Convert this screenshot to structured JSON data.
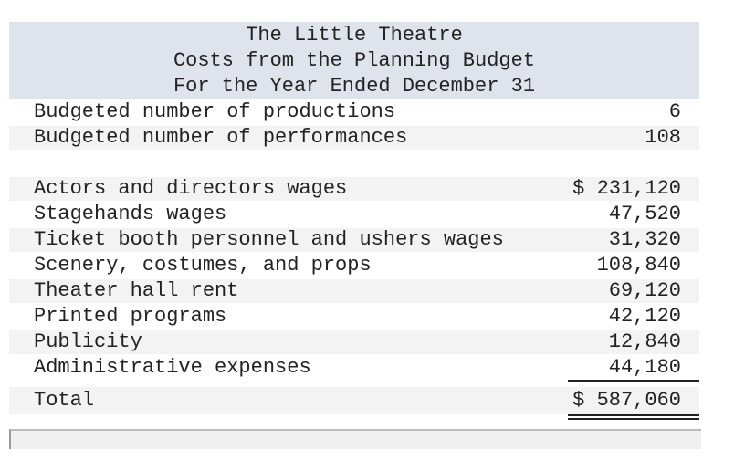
{
  "header": {
    "lines": [
      "The Little Theatre",
      "Costs from the Planning Budget",
      "For the Year Ended December 31"
    ]
  },
  "activity": {
    "rows": [
      {
        "label": "Budgeted number of productions",
        "value": "6"
      },
      {
        "label": "Budgeted number of performances",
        "value": "108"
      }
    ]
  },
  "costs": {
    "rows": [
      {
        "label": "Actors and directors wages",
        "value": "$ 231,120"
      },
      {
        "label": "Stagehands wages",
        "value": "47,520"
      },
      {
        "label": "Ticket booth personnel and ushers wages",
        "value": "31,320"
      },
      {
        "label": "Scenery, costumes, and props",
        "value": "108,840"
      },
      {
        "label": "Theater hall rent",
        "value": "69,120"
      },
      {
        "label": "Printed programs",
        "value": "42,120"
      },
      {
        "label": "Publicity",
        "value": "12,840"
      },
      {
        "label": "Administrative expenses",
        "value": "44,180"
      }
    ],
    "total": {
      "label": "Total",
      "value": "$ 587,060"
    }
  }
}
